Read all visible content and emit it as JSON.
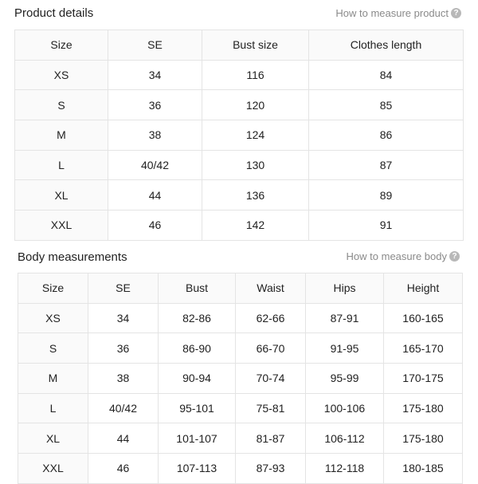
{
  "product": {
    "title": "Product details",
    "measure_link": "How to measure product",
    "headers": [
      "Size",
      "SE",
      "Bust size",
      "Clothes length"
    ],
    "rows": [
      [
        "XS",
        "34",
        "116",
        "84"
      ],
      [
        "S",
        "36",
        "120",
        "85"
      ],
      [
        "M",
        "38",
        "124",
        "86"
      ],
      [
        "L",
        "40/42",
        "130",
        "87"
      ],
      [
        "XL",
        "44",
        "136",
        "89"
      ],
      [
        "XXL",
        "46",
        "142",
        "91"
      ]
    ]
  },
  "body": {
    "title": "Body measurements",
    "measure_link": "How to measure body",
    "headers": [
      "Size",
      "SE",
      "Bust",
      "Waist",
      "Hips",
      "Height"
    ],
    "rows": [
      [
        "XS",
        "34",
        "82-86",
        "62-66",
        "87-91",
        "160-165"
      ],
      [
        "S",
        "36",
        "86-90",
        "66-70",
        "91-95",
        "165-170"
      ],
      [
        "M",
        "38",
        "90-94",
        "70-74",
        "95-99",
        "170-175"
      ],
      [
        "L",
        "40/42",
        "95-101",
        "75-81",
        "100-106",
        "175-180"
      ],
      [
        "XL",
        "44",
        "101-107",
        "81-87",
        "106-112",
        "175-180"
      ],
      [
        "XXL",
        "46",
        "107-113",
        "87-93",
        "112-118",
        "180-185"
      ]
    ]
  },
  "icons": {
    "help": "question-circle-icon",
    "help_glyph": "?"
  }
}
